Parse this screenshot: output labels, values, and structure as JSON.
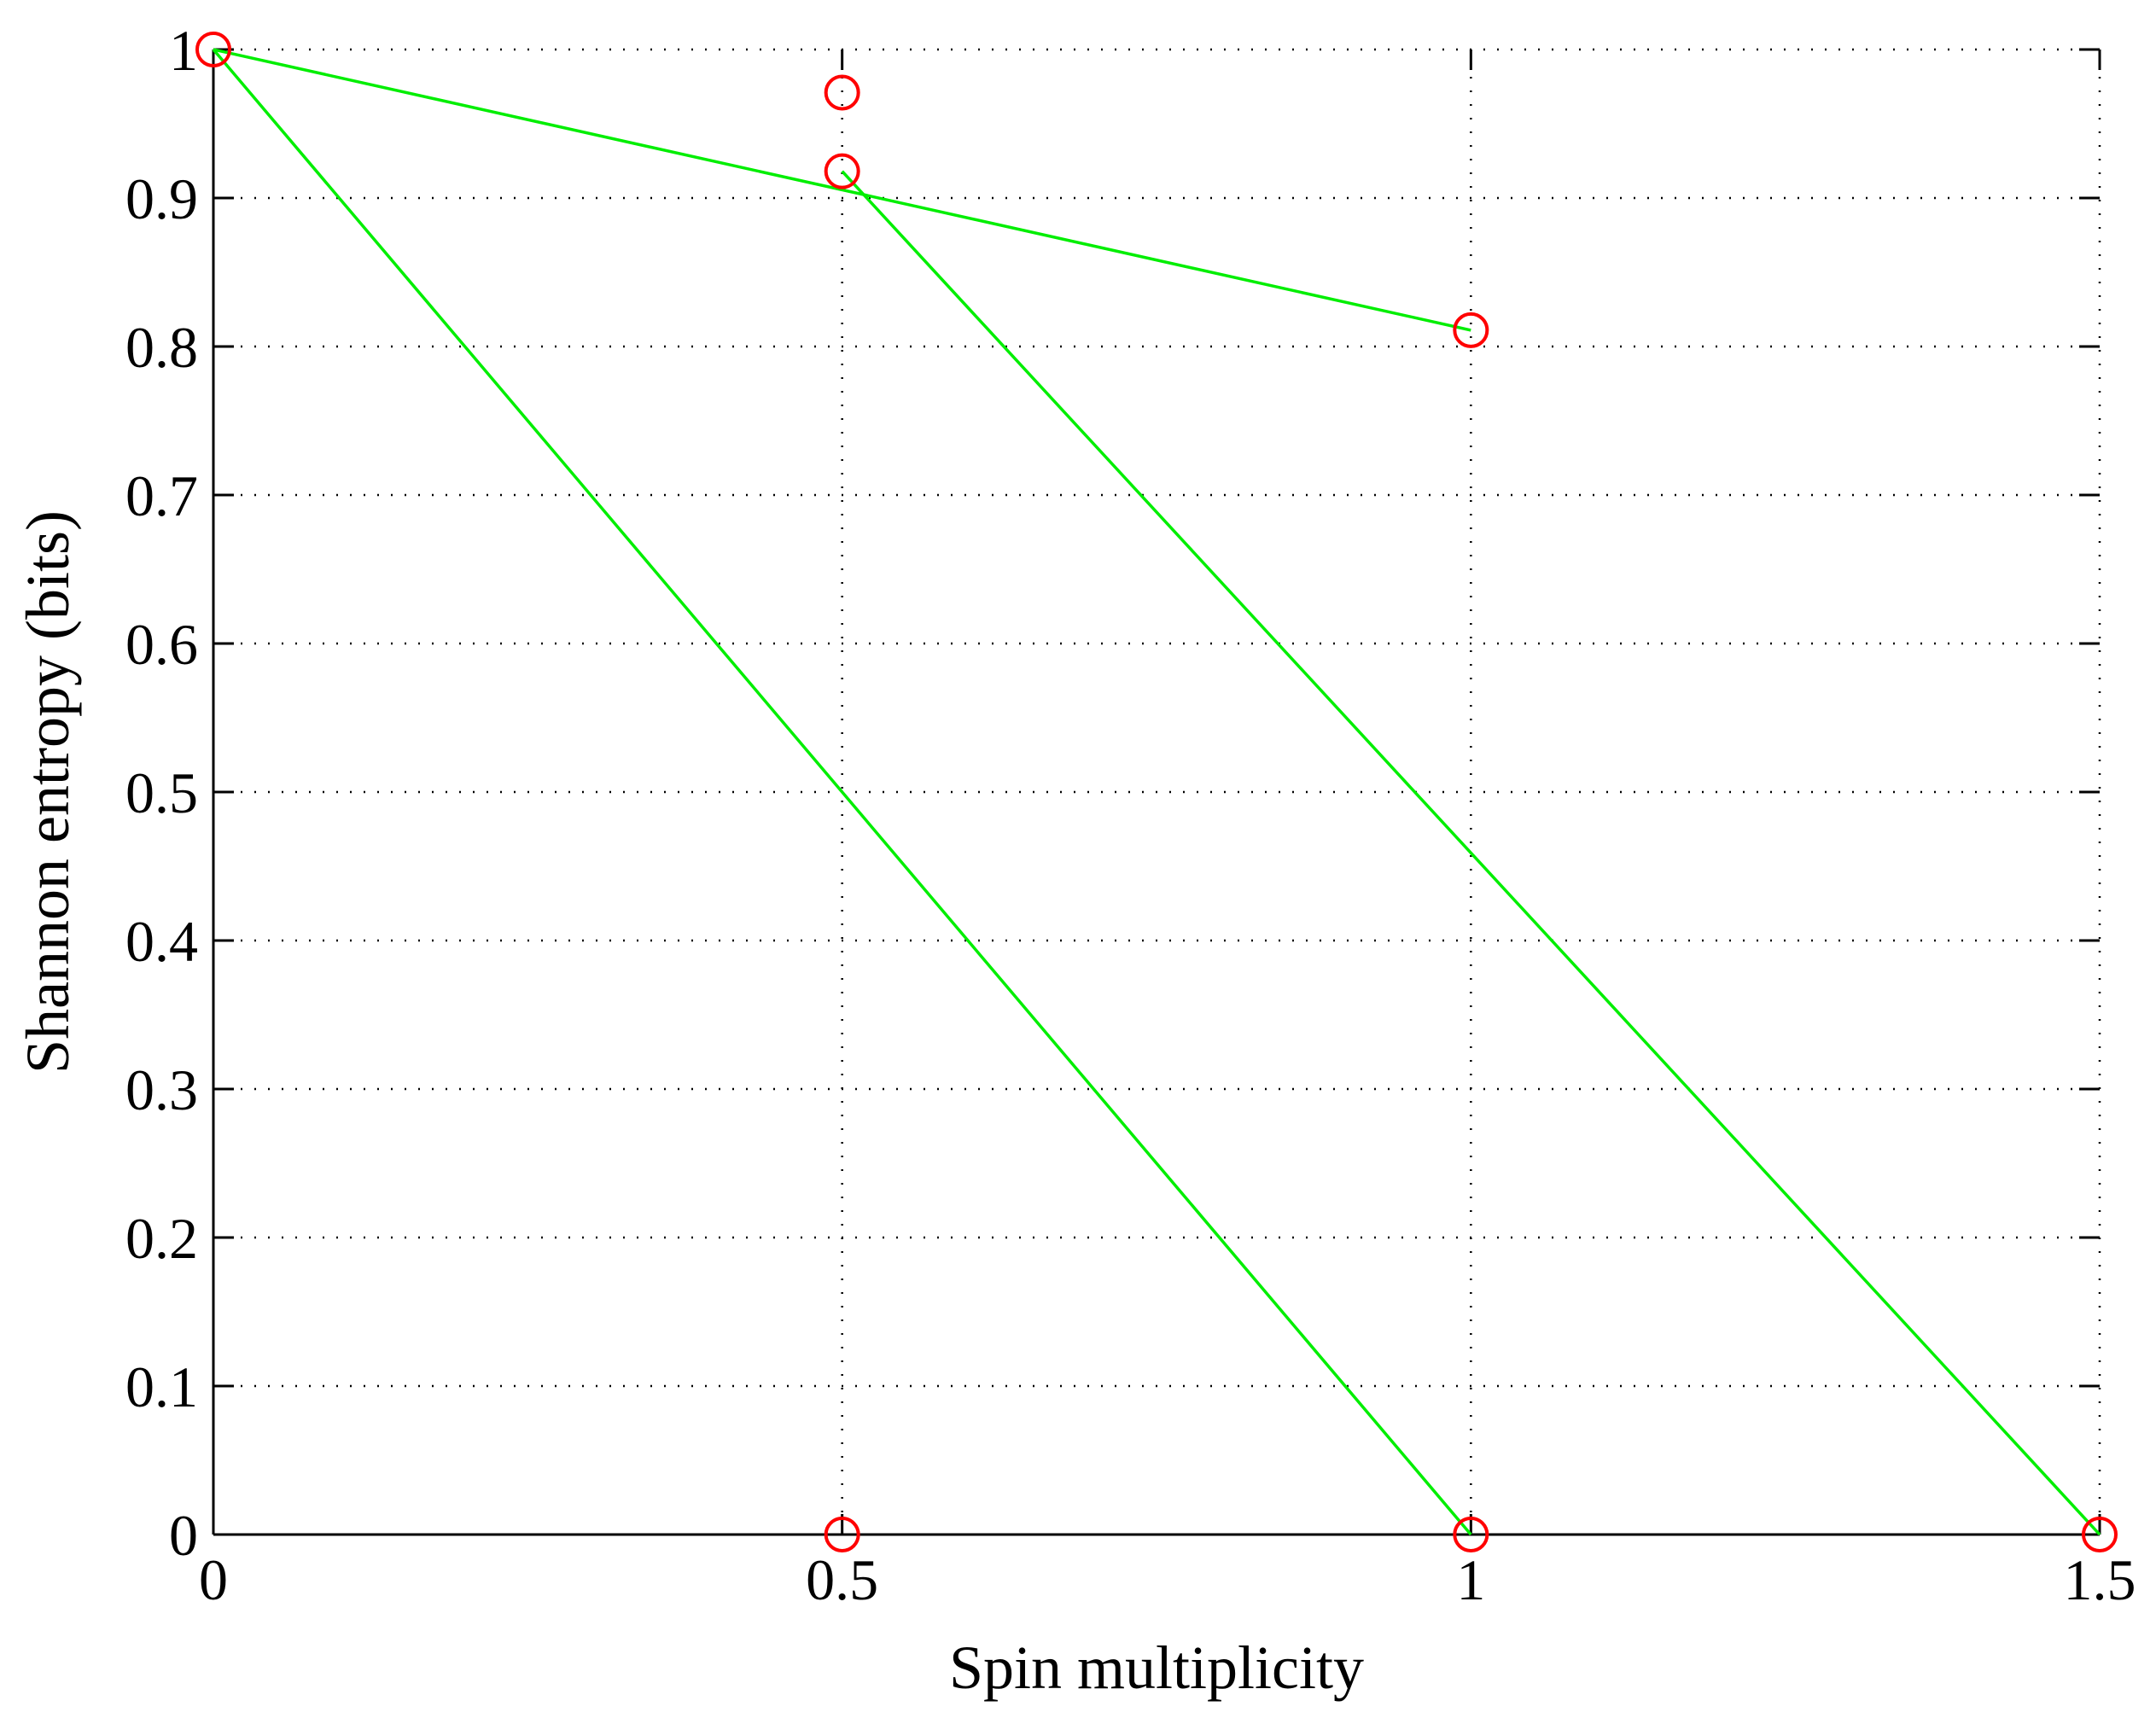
{
  "chart_data": {
    "type": "scatter",
    "xlabel": "Spin multiplicity",
    "ylabel": "Shannon entropy (bits)",
    "xlim": [
      0,
      1.5
    ],
    "ylim": [
      0,
      1
    ],
    "x_ticks": [
      {
        "value": 0,
        "label": "0"
      },
      {
        "value": 0.5,
        "label": "0.5"
      },
      {
        "value": 1,
        "label": "1"
      },
      {
        "value": 1.5,
        "label": "1.5"
      }
    ],
    "y_ticks": [
      {
        "value": 0,
        "label": "0"
      },
      {
        "value": 0.1,
        "label": "0.1"
      },
      {
        "value": 0.2,
        "label": "0.2"
      },
      {
        "value": 0.3,
        "label": "0.3"
      },
      {
        "value": 0.4,
        "label": "0.4"
      },
      {
        "value": 0.5,
        "label": "0.5"
      },
      {
        "value": 0.6,
        "label": "0.6"
      },
      {
        "value": 0.7,
        "label": "0.7"
      },
      {
        "value": 0.8,
        "label": "0.8"
      },
      {
        "value": 0.9,
        "label": "0.9"
      },
      {
        "value": 1,
        "label": "1"
      }
    ],
    "grid": true,
    "grid_style": "dotted",
    "points": [
      {
        "x": 0,
        "y": 1.0
      },
      {
        "x": 0.5,
        "y": 0.971
      },
      {
        "x": 0.5,
        "y": 0.918
      },
      {
        "x": 1,
        "y": 0.811
      },
      {
        "x": 0.5,
        "y": 0
      },
      {
        "x": 1,
        "y": 0
      },
      {
        "x": 1.5,
        "y": 0
      }
    ],
    "marker_color": "#ff0000",
    "marker": "circle",
    "lines": [
      {
        "x": [
          0,
          1
        ],
        "y": [
          1.0,
          0.811
        ]
      },
      {
        "x": [
          0,
          1
        ],
        "y": [
          1.0,
          0
        ]
      },
      {
        "x": [
          0.5,
          1.5
        ],
        "y": [
          0.918,
          0
        ]
      }
    ],
    "line_color": "#00ee00"
  }
}
